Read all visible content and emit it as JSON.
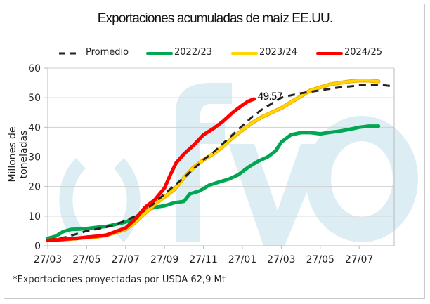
{
  "chart_data": {
    "type": "line",
    "title": "Exportaciones acumuladas de maíz EE.UU.",
    "xlabel": "",
    "ylabel": "Millones de toneladas",
    "ylim": [
      0,
      60
    ],
    "yticks": [
      0,
      10,
      20,
      30,
      40,
      50,
      60
    ],
    "xlim": [
      0,
      17.8
    ],
    "x_unit": "months since 27/03",
    "xticks": [
      0,
      2,
      4,
      6,
      8,
      10,
      12,
      14,
      16
    ],
    "xtick_labels": [
      "27/03",
      "27/05",
      "27/07",
      "27/09",
      "27/11",
      "27/01",
      "27/03",
      "27/05",
      "27/07"
    ],
    "grid": "horizontal",
    "legend_position": "top",
    "annotation": {
      "text": "49.57",
      "x": 10.6,
      "y": 49.57
    },
    "series": [
      {
        "name": "Promedio",
        "color": "#222222",
        "style": "dashed",
        "x": [
          0,
          0.5,
          1,
          1.5,
          2,
          2.5,
          3,
          3.5,
          4,
          4.5,
          5,
          5.5,
          6,
          6.5,
          7,
          7.5,
          8,
          8.5,
          9,
          9.5,
          10,
          10.5,
          11,
          11.5,
          12,
          12.5,
          13,
          13.5,
          14,
          14.5,
          15,
          15.5,
          16,
          16.5,
          17,
          17.8
        ],
        "values": [
          2.0,
          2.4,
          3.0,
          4.0,
          5.0,
          5.6,
          6.3,
          7.2,
          8.5,
          10.0,
          12.0,
          14.5,
          17.5,
          20.3,
          23.0,
          26.0,
          29.0,
          31.5,
          34.5,
          37.5,
          40.5,
          43.5,
          46.0,
          48.0,
          50.0,
          50.8,
          51.5,
          52.0,
          52.5,
          53.0,
          53.5,
          53.8,
          54.2,
          54.4,
          54.4,
          53.8
        ]
      },
      {
        "name": "2022/23",
        "color": "#00a651",
        "style": "solid",
        "x": [
          0,
          0.4,
          0.8,
          1.2,
          1.6,
          2,
          2.5,
          3,
          3.5,
          4,
          4.5,
          5,
          5.5,
          6,
          6.5,
          7,
          7.3,
          7.8,
          8.3,
          8.8,
          9.3,
          9.8,
          10.3,
          10.8,
          11.3,
          11.7,
          12,
          12.5,
          13,
          13.5,
          14,
          14.5,
          15,
          15.5,
          16,
          16.5,
          17
        ],
        "values": [
          2.5,
          3.2,
          4.8,
          5.5,
          5.6,
          5.8,
          6.2,
          6.5,
          7.2,
          8.0,
          9.5,
          12.0,
          13.0,
          13.5,
          14.5,
          15.0,
          17.5,
          18.5,
          20.5,
          21.5,
          22.5,
          24.0,
          26.5,
          28.5,
          30.0,
          32.0,
          35.0,
          37.5,
          38.2,
          38.2,
          37.8,
          38.3,
          38.7,
          39.3,
          40.0,
          40.4,
          40.4
        ]
      },
      {
        "name": "2023/24",
        "color": "#ffd700",
        "style": "solid",
        "x": [
          0,
          0.5,
          1,
          1.5,
          2,
          2.5,
          3,
          3.5,
          4,
          4.5,
          5,
          5.5,
          6,
          6.5,
          7,
          7.5,
          8,
          8.5,
          9,
          9.5,
          10,
          10.5,
          11,
          11.5,
          12,
          12.5,
          13,
          13.5,
          14,
          14.5,
          15,
          15.5,
          16,
          16.5,
          17
        ],
        "values": [
          1.8,
          2.0,
          2.2,
          2.5,
          2.8,
          3.0,
          3.5,
          4.5,
          5.5,
          8.0,
          11.0,
          14.0,
          16.5,
          19.0,
          23.0,
          26.5,
          29.0,
          31.0,
          33.5,
          36.5,
          39.0,
          41.5,
          43.5,
          45.0,
          46.5,
          48.5,
          50.5,
          52.5,
          53.5,
          54.5,
          55.0,
          55.5,
          55.8,
          55.8,
          55.5
        ]
      },
      {
        "name": "2024/25",
        "color": "#ff0000",
        "style": "solid",
        "x": [
          0,
          0.5,
          1,
          1.5,
          2,
          2.5,
          3,
          3.5,
          4,
          4.5,
          5,
          5.5,
          6,
          6.3,
          6.6,
          7,
          7.5,
          8,
          8.5,
          9,
          9.5,
          10,
          10.3,
          10.6
        ],
        "values": [
          1.8,
          2.0,
          2.3,
          2.5,
          2.9,
          3.2,
          3.6,
          4.8,
          6.0,
          9.0,
          13.0,
          15.5,
          19.5,
          24.0,
          28.0,
          31.0,
          34.0,
          37.5,
          39.5,
          42.0,
          45.0,
          47.5,
          48.8,
          49.57
        ]
      }
    ]
  },
  "legend": [
    {
      "label": "Promedio"
    },
    {
      "label": "2022/23"
    },
    {
      "label": "2023/24"
    },
    {
      "label": "2024/25"
    }
  ],
  "watermark": {
    "text": "()fyo",
    "color": "#dceef3"
  },
  "footnote": "*Exportaciones proyectadas por USDA 62,9 Mt"
}
